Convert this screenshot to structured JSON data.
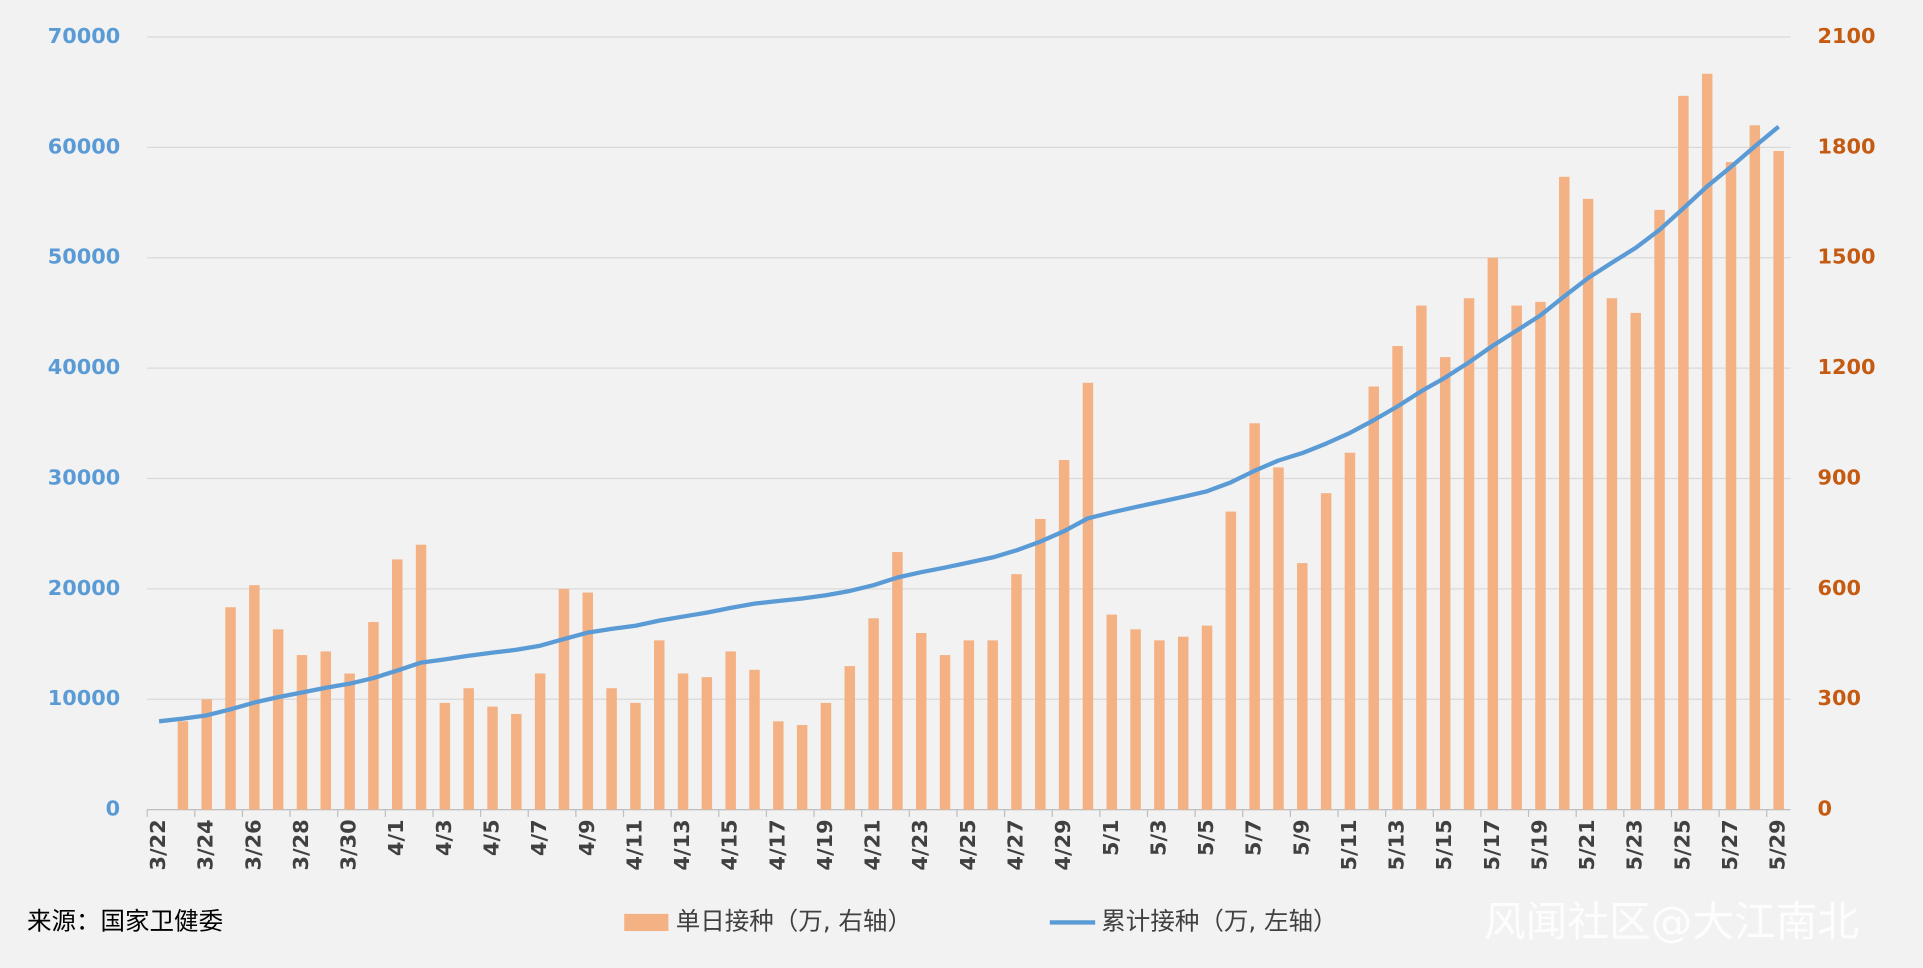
{
  "chart_data": {
    "type": "combo",
    "source": "来源：国家卫健委",
    "watermark": "风闻社区@大江南北",
    "categories": [
      "3/22",
      null,
      "3/24",
      null,
      "3/26",
      null,
      "3/28",
      null,
      "3/30",
      null,
      "4/1",
      null,
      "4/3",
      null,
      "4/5",
      null,
      "4/7",
      null,
      "4/9",
      null,
      "4/11",
      null,
      "4/13",
      null,
      "4/15",
      null,
      "4/17",
      null,
      "4/19",
      null,
      "4/21",
      null,
      "4/23",
      null,
      "4/25",
      null,
      "4/27",
      null,
      "4/29",
      null,
      "5/1",
      null,
      "5/3",
      null,
      "5/5",
      null,
      "5/7",
      null,
      "5/9",
      null,
      "5/11",
      null,
      "5/13",
      null,
      "5/15",
      null,
      "5/17",
      null,
      "5/19",
      null,
      "5/21",
      null,
      "5/23",
      null,
      "5/25",
      null,
      "5/27",
      null,
      "5/29"
    ],
    "series": [
      {
        "name": "单日接种（万, 右轴）",
        "type": "bar",
        "color": "#f4b183",
        "axis": "y2",
        "values": [
          null,
          240,
          300,
          550,
          610,
          490,
          420,
          430,
          370,
          510,
          680,
          720,
          290,
          330,
          280,
          260,
          370,
          600,
          590,
          330,
          290,
          460,
          370,
          360,
          430,
          380,
          240,
          230,
          290,
          390,
          520,
          700,
          480,
          420,
          460,
          460,
          640,
          790,
          950,
          1160,
          530,
          490,
          460,
          470,
          500,
          810,
          1050,
          930,
          670,
          860,
          970,
          1150,
          1260,
          1370,
          1230,
          1390,
          1500,
          1370,
          1380,
          1720,
          1660,
          1390,
          1350,
          1630,
          1940,
          2000,
          1760,
          1860,
          1790
        ]
      },
      {
        "name": "累计接种（万, 左轴）",
        "type": "line",
        "color": "#5b9bd5",
        "axis": "y",
        "values": [
          8000,
          8240,
          8540,
          9090,
          9700,
          10190,
          10610,
          11040,
          11410,
          11920,
          12600,
          13320,
          13610,
          13940,
          14220,
          14480,
          14850,
          15450,
          16040,
          16370,
          16660,
          17120,
          17490,
          17850,
          18280,
          18660,
          18900,
          19130,
          19420,
          19810,
          20330,
          21030,
          21510,
          21930,
          22390,
          22850,
          23490,
          24280,
          25230,
          26390,
          26920,
          27410,
          27870,
          28340,
          28840,
          29650,
          30700,
          31630,
          32300,
          33160,
          34130,
          35280,
          36540,
          37910,
          39140,
          40530,
          42030,
          43400,
          44780,
          46500,
          48160,
          49550,
          50900,
          52530,
          54470,
          56470,
          58230,
          60090,
          61880
        ]
      }
    ],
    "ylim": [
      0,
      70000
    ],
    "yticks": [
      0,
      10000,
      20000,
      30000,
      40000,
      50000,
      60000,
      70000
    ],
    "y2lim": [
      0,
      2100
    ],
    "y2ticks": [
      0,
      300,
      600,
      900,
      1200,
      1500,
      1800,
      2100
    ],
    "grid": true
  }
}
